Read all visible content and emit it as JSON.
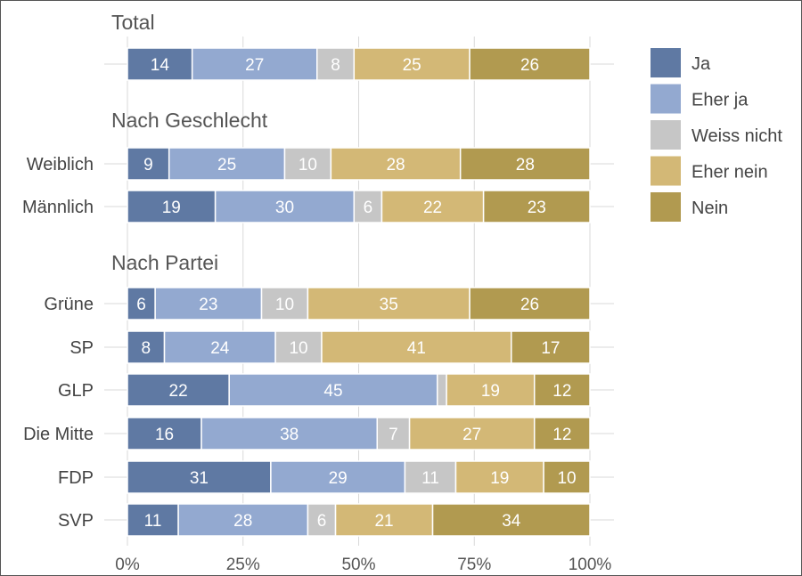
{
  "chart_data": {
    "type": "bar",
    "orientation": "horizontal",
    "stacked": true,
    "unit": "%",
    "xlim": [
      0,
      100
    ],
    "ticks": [
      "0%",
      "25%",
      "50%",
      "75%",
      "100%"
    ],
    "tick_values": [
      0,
      25,
      50,
      75,
      100
    ],
    "legend": {
      "position": "right",
      "entries": [
        {
          "name": "Ja",
          "color": "#5f79a3"
        },
        {
          "name": "Eher ja",
          "color": "#93a9d0"
        },
        {
          "name": "Weiss nicht",
          "color": "#c6c6c6"
        },
        {
          "name": "Eher nein",
          "color": "#d3b876"
        },
        {
          "name": "Nein",
          "color": "#b19a50"
        }
      ]
    },
    "groups": [
      {
        "title": "Total",
        "rows": [
          {
            "label": "",
            "values": [
              14,
              27,
              8,
              25,
              26
            ],
            "labels": [
              "14",
              "27",
              "8",
              "25",
              "26"
            ]
          }
        ]
      },
      {
        "title": "Nach Geschlecht",
        "rows": [
          {
            "label": "Weiblich",
            "values": [
              9,
              25,
              10,
              28,
              28
            ],
            "labels": [
              "9",
              "25",
              "10",
              "28",
              "28"
            ]
          },
          {
            "label": "Männlich",
            "values": [
              19,
              30,
              6,
              22,
              23
            ],
            "labels": [
              "19",
              "30",
              "6",
              "22",
              "23"
            ]
          }
        ]
      },
      {
        "title": "Nach Partei",
        "rows": [
          {
            "label": "Grüne",
            "values": [
              6,
              23,
              10,
              35,
              26
            ],
            "labels": [
              "6",
              "23",
              "10",
              "35",
              "26"
            ]
          },
          {
            "label": "SP",
            "values": [
              8,
              24,
              10,
              41,
              17
            ],
            "labels": [
              "8",
              "24",
              "10",
              "41",
              "17"
            ]
          },
          {
            "label": "GLP",
            "values": [
              22,
              45,
              2,
              19,
              12
            ],
            "labels": [
              "22",
              "45",
              "",
              "19",
              "12"
            ]
          },
          {
            "label": "Die Mitte",
            "values": [
              16,
              38,
              7,
              27,
              12
            ],
            "labels": [
              "16",
              "38",
              "7",
              "27",
              "12"
            ]
          },
          {
            "label": "FDP",
            "values": [
              31,
              29,
              11,
              19,
              10
            ],
            "labels": [
              "31",
              "29",
              "11",
              "19",
              "10"
            ]
          },
          {
            "label": "SVP",
            "values": [
              11,
              28,
              6,
              21,
              34
            ],
            "labels": [
              "11",
              "28",
              "6",
              "21",
              "34"
            ]
          }
        ]
      }
    ]
  }
}
